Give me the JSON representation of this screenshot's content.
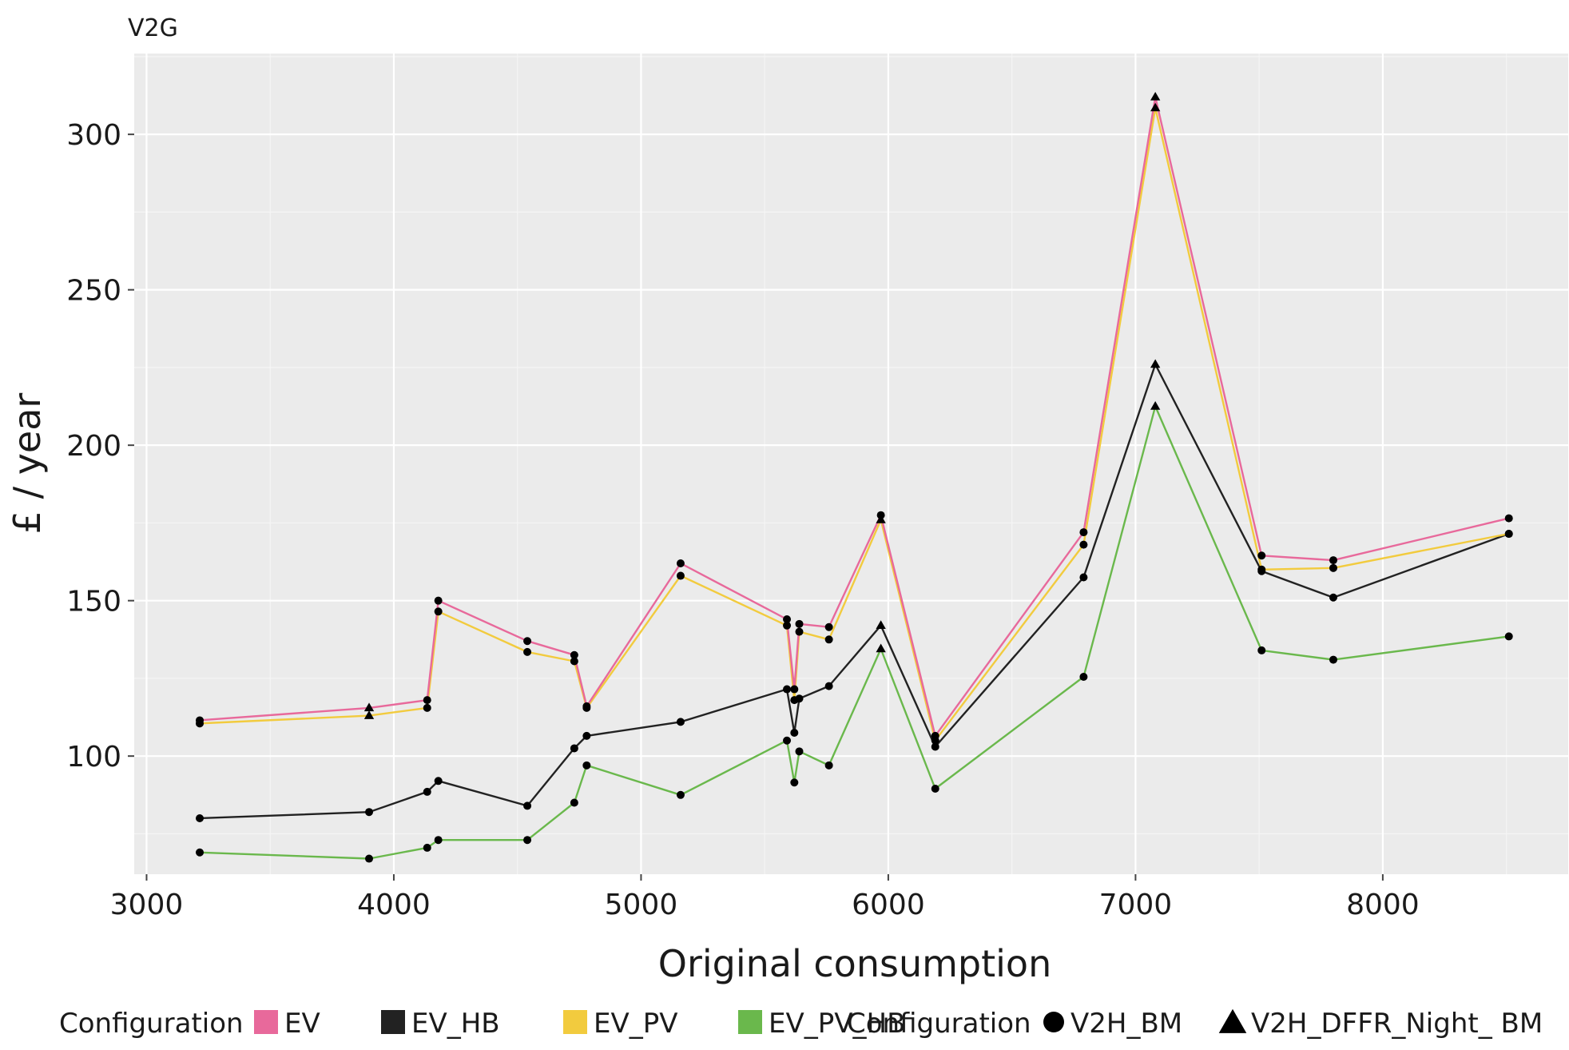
{
  "chart_data": {
    "type": "line",
    "title": "V2G",
    "xlabel": "Original consumption",
    "ylabel": "£ / year",
    "xlim": [
      2950,
      8750
    ],
    "ylim": [
      62,
      326
    ],
    "x_ticks": [
      3000,
      4000,
      5000,
      6000,
      7000,
      8000
    ],
    "y_ticks": [
      100,
      150,
      200,
      250,
      300
    ],
    "grid": true,
    "legend_position": "bottom",
    "legend": {
      "color_title": "Configuration",
      "shape_title": "Configuration",
      "shapes": [
        {
          "label": "V2H_BM",
          "marker": "circle"
        },
        {
          "label": "V2H_DFFR_Night_ BM",
          "marker": "triangle"
        }
      ]
    },
    "series": [
      {
        "name": "EV",
        "color": "#e8699b",
        "x": [
          3215,
          3900,
          4135,
          4180,
          4540,
          4730,
          4780,
          5160,
          5590,
          5620,
          5640,
          5760,
          5970,
          6190,
          6790,
          7080,
          7510,
          7800,
          8510
        ],
        "y": [
          111.5,
          115.5,
          118,
          150,
          137,
          132.5,
          116,
          162,
          144,
          121.5,
          142.5,
          141.5,
          177.5,
          106.5,
          172,
          312,
          164.5,
          163,
          176.5
        ],
        "shapes": [
          "circle",
          "triangle",
          "circle",
          "circle",
          "circle",
          "circle",
          "circle",
          "circle",
          "circle",
          "circle",
          "circle",
          "circle",
          "circle",
          "circle",
          "circle",
          "triangle",
          "circle",
          "circle",
          "circle"
        ]
      },
      {
        "name": "EV_PV",
        "color": "#f2cb3e",
        "x": [
          3215,
          3900,
          4135,
          4180,
          4540,
          4730,
          4780,
          5160,
          5590,
          5620,
          5640,
          5760,
          5970,
          6190,
          6790,
          7080,
          7510,
          7800,
          8510
        ],
        "y": [
          110.5,
          113,
          115.5,
          146.5,
          133.5,
          130.5,
          115.5,
          158,
          142,
          118,
          140,
          137.5,
          176,
          105,
          168,
          308.5,
          160,
          160.5,
          171.5
        ],
        "shapes": [
          "circle",
          "triangle",
          "circle",
          "circle",
          "circle",
          "circle",
          "circle",
          "circle",
          "circle",
          "circle",
          "circle",
          "circle",
          "triangle",
          "circle",
          "circle",
          "triangle",
          "circle",
          "circle",
          "circle"
        ]
      },
      {
        "name": "EV_HB",
        "color": "#222222",
        "x": [
          3215,
          3900,
          4135,
          4180,
          4540,
          4730,
          4780,
          5160,
          5590,
          5620,
          5640,
          5760,
          5970,
          6190,
          6790,
          7080,
          7510,
          7800,
          8510
        ],
        "y": [
          80,
          82,
          88.5,
          92,
          84,
          102.5,
          106.5,
          111,
          121.5,
          107.5,
          118.5,
          122.5,
          142,
          103,
          157.5,
          226,
          159.5,
          151,
          171.5
        ],
        "shapes": [
          "circle",
          "circle",
          "circle",
          "circle",
          "circle",
          "circle",
          "circle",
          "circle",
          "circle",
          "circle",
          "circle",
          "circle",
          "triangle",
          "circle",
          "circle",
          "triangle",
          "circle",
          "circle",
          "circle"
        ]
      },
      {
        "name": "EV_PV_HB",
        "color": "#6ab84c",
        "x": [
          3215,
          3900,
          4135,
          4180,
          4540,
          4730,
          4780,
          5160,
          5590,
          5620,
          5640,
          5760,
          5970,
          6190,
          6790,
          7080,
          7510,
          7800,
          8510
        ],
        "y": [
          69,
          67,
          70.5,
          73,
          73,
          85,
          97,
          87.5,
          105,
          91.5,
          101.5,
          97,
          134.5,
          89.5,
          125.5,
          212.5,
          134,
          131,
          138.5
        ],
        "shapes": [
          "circle",
          "circle",
          "circle",
          "circle",
          "circle",
          "circle",
          "circle",
          "circle",
          "circle",
          "circle",
          "circle",
          "circle",
          "triangle",
          "circle",
          "circle",
          "triangle",
          "circle",
          "circle",
          "circle"
        ]
      }
    ]
  }
}
